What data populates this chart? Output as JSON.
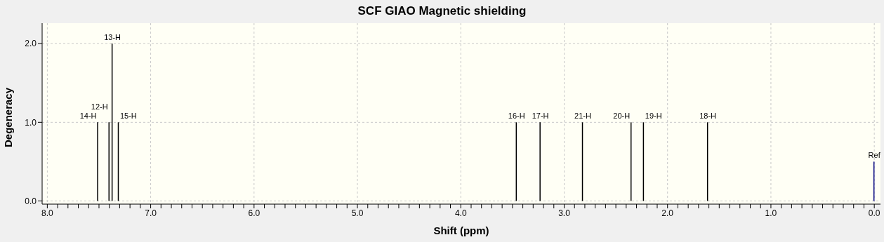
{
  "chart_data": {
    "type": "bar",
    "title": "SCF GIAO Magnetic shielding",
    "xlabel": "Shift (ppm)",
    "ylabel": "Degeneracy",
    "x": [
      7.51,
      7.4,
      7.37,
      7.31,
      3.46,
      3.23,
      2.82,
      2.35,
      2.23,
      1.61,
      0.0
    ],
    "values": [
      1,
      1,
      2,
      1,
      1,
      1,
      1,
      1,
      1,
      1,
      0.5
    ],
    "colors": [
      "#000000",
      "#000000",
      "#000000",
      "#000000",
      "#000000",
      "#000000",
      "#000000",
      "#000000",
      "#000000",
      "#000000",
      "#000080"
    ],
    "annotations": [
      {
        "text": "14-H",
        "x": 7.51,
        "y": 1
      },
      {
        "text": "12-H",
        "x": 7.4,
        "y": 1
      },
      {
        "text": "13-H",
        "x": 7.37,
        "y": 2
      },
      {
        "text": "15-H",
        "x": 7.31,
        "y": 1
      },
      {
        "text": "16-H",
        "x": 3.46,
        "y": 1
      },
      {
        "text": "17-H",
        "x": 3.23,
        "y": 1
      },
      {
        "text": "21-H",
        "x": 2.82,
        "y": 1
      },
      {
        "text": "20-H",
        "x": 2.35,
        "y": 1
      },
      {
        "text": "19-H",
        "x": 2.23,
        "y": 1
      },
      {
        "text": "18-H",
        "x": 1.61,
        "y": 1
      },
      {
        "text": "Ref",
        "x": 0.0,
        "y": 0.5
      }
    ],
    "xlim": [
      8.05,
      -0.06
    ],
    "ylim": [
      -0.04,
      2.26
    ],
    "xticks": [
      {
        "value": 8,
        "label": "8.0"
      },
      {
        "value": 7.9,
        "label": null
      },
      {
        "value": 7.8,
        "label": null
      },
      {
        "value": 7.7,
        "label": null
      },
      {
        "value": 7.6,
        "label": null
      },
      {
        "value": 7.5,
        "label": null
      },
      {
        "value": 7.4,
        "label": null
      },
      {
        "value": 7.3,
        "label": null
      },
      {
        "value": 7.2,
        "label": null
      },
      {
        "value": 7.1,
        "label": null
      },
      {
        "value": 7,
        "label": "7.0"
      },
      {
        "value": 6.9,
        "label": null
      },
      {
        "value": 6.8,
        "label": null
      },
      {
        "value": 6.7,
        "label": null
      },
      {
        "value": 6.6,
        "label": null
      },
      {
        "value": 6.5,
        "label": null
      },
      {
        "value": 6.4,
        "label": null
      },
      {
        "value": 6.3,
        "label": null
      },
      {
        "value": 6.2,
        "label": null
      },
      {
        "value": 6.1,
        "label": null
      },
      {
        "value": 6,
        "label": "6.0"
      },
      {
        "value": 5.9,
        "label": null
      },
      {
        "value": 5.8,
        "label": null
      },
      {
        "value": 5.7,
        "label": null
      },
      {
        "value": 5.6,
        "label": null
      },
      {
        "value": 5.5,
        "label": null
      },
      {
        "value": 5.4,
        "label": null
      },
      {
        "value": 5.3,
        "label": null
      },
      {
        "value": 5.2,
        "label": null
      },
      {
        "value": 5.1,
        "label": null
      },
      {
        "value": 5,
        "label": "5.0"
      },
      {
        "value": 4.9,
        "label": null
      },
      {
        "value": 4.8,
        "label": null
      },
      {
        "value": 4.7,
        "label": null
      },
      {
        "value": 4.6,
        "label": null
      },
      {
        "value": 4.5,
        "label": null
      },
      {
        "value": 4.4,
        "label": null
      },
      {
        "value": 4.3,
        "label": null
      },
      {
        "value": 4.2,
        "label": null
      },
      {
        "value": 4.1,
        "label": null
      },
      {
        "value": 4,
        "label": "4.0"
      },
      {
        "value": 3.9,
        "label": null
      },
      {
        "value": 3.8,
        "label": null
      },
      {
        "value": 3.7,
        "label": null
      },
      {
        "value": 3.6,
        "label": null
      },
      {
        "value": 3.5,
        "label": null
      },
      {
        "value": 3.4,
        "label": null
      },
      {
        "value": 3.3,
        "label": null
      },
      {
        "value": 3.2,
        "label": null
      },
      {
        "value": 3.1,
        "label": null
      },
      {
        "value": 3,
        "label": "3.0"
      },
      {
        "value": 2.9,
        "label": null
      },
      {
        "value": 2.8,
        "label": null
      },
      {
        "value": 2.7,
        "label": null
      },
      {
        "value": 2.6,
        "label": null
      },
      {
        "value": 2.5,
        "label": null
      },
      {
        "value": 2.4,
        "label": null
      },
      {
        "value": 2.3,
        "label": null
      },
      {
        "value": 2.2,
        "label": null
      },
      {
        "value": 2.1,
        "label": null
      },
      {
        "value": 2,
        "label": "2.0"
      },
      {
        "value": 1.9,
        "label": null
      },
      {
        "value": 1.8,
        "label": null
      },
      {
        "value": 1.7,
        "label": null
      },
      {
        "value": 1.6,
        "label": null
      },
      {
        "value": 1.5,
        "label": null
      },
      {
        "value": 1.4,
        "label": null
      },
      {
        "value": 1.3,
        "label": null
      },
      {
        "value": 1.2,
        "label": null
      },
      {
        "value": 1.1,
        "label": null
      },
      {
        "value": 1,
        "label": "1.0"
      },
      {
        "value": 0.9,
        "label": null
      },
      {
        "value": 0.8,
        "label": null
      },
      {
        "value": 0.7,
        "label": null
      },
      {
        "value": 0.6,
        "label": null
      },
      {
        "value": 0.5,
        "label": null
      },
      {
        "value": 0.4,
        "label": null
      },
      {
        "value": 0.3,
        "label": null
      },
      {
        "value": 0.2,
        "label": null
      },
      {
        "value": 0.1,
        "label": null
      },
      {
        "value": 0,
        "label": "0.0"
      }
    ],
    "yticks": [
      {
        "value": 0,
        "label": "0.0"
      },
      {
        "value": 1,
        "label": "1.0"
      },
      {
        "value": 2,
        "label": "2.0"
      }
    ],
    "grid": true
  }
}
